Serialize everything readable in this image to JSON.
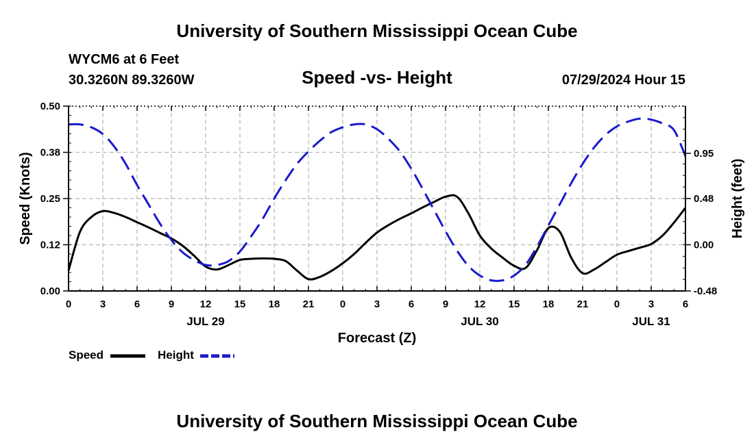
{
  "header": {
    "title": "University of Southern Mississippi Ocean Cube",
    "station": "WYCM6 at 6 Feet",
    "coords": "30.3260N  89.3260W",
    "datetime": "07/29/2024 Hour 15",
    "footer_title": "University of Southern Mississippi Ocean Cube"
  },
  "legend": {
    "speed_label": "Speed",
    "height_label": "Height"
  },
  "colors": {
    "speed": "#000000",
    "height": "#1a1acc",
    "grid": "#b8b8b8"
  },
  "chart_data": {
    "type": "line",
    "title": "Speed -vs- Height",
    "xlabel": "Forecast (Z)",
    "ylabel": "Speed (Knots)",
    "ylabel_right": "Height (feet)",
    "xlim": [
      0,
      54
    ],
    "ylim": [
      0,
      0.5
    ],
    "ylim_right": [
      -0.48,
      1.44
    ],
    "x_tick_values": [
      0,
      3,
      6,
      9,
      12,
      15,
      18,
      21,
      24,
      27,
      30,
      33,
      36,
      39,
      42,
      45,
      48,
      51,
      54
    ],
    "x_tick_labels": [
      "0",
      "3",
      "6",
      "9",
      "12",
      "15",
      "18",
      "21",
      "0",
      "3",
      "6",
      "9",
      "12",
      "15",
      "18",
      "21",
      "0",
      "3",
      "6"
    ],
    "date_labels": [
      {
        "x": 12,
        "label": "JUL 29"
      },
      {
        "x": 36,
        "label": "JUL 30"
      },
      {
        "x": 51,
        "label": "JUL 31"
      }
    ],
    "y_ticks": [
      "0.00",
      "0.12",
      "0.25",
      "0.38",
      "0.50"
    ],
    "y_tick_values": [
      0,
      0.125,
      0.25,
      0.375,
      0.5
    ],
    "y_ticks_right": [
      "-0.48",
      "0.00",
      "0.48",
      "0.95"
    ],
    "y_tick_values_right": [
      -0.48,
      0,
      0.48,
      0.95
    ],
    "series": [
      {
        "name": "Speed",
        "axis": "left",
        "style": "solid",
        "x": [
          0,
          1,
          2,
          3,
          4,
          5,
          6,
          7,
          8,
          9,
          10,
          11,
          12,
          13,
          14,
          15,
          16,
          17,
          18,
          19,
          20,
          21,
          22,
          23,
          24,
          25,
          26,
          27,
          28,
          29,
          30,
          31,
          32,
          33,
          34,
          35,
          36,
          37,
          38,
          39,
          40,
          41,
          42,
          43,
          44,
          45,
          46,
          47,
          48,
          49,
          50,
          51,
          52,
          53,
          54
        ],
        "values": [
          0.055,
          0.16,
          0.2,
          0.216,
          0.211,
          0.2,
          0.186,
          0.172,
          0.157,
          0.142,
          0.122,
          0.095,
          0.066,
          0.058,
          0.07,
          0.084,
          0.087,
          0.088,
          0.087,
          0.081,
          0.055,
          0.032,
          0.038,
          0.054,
          0.075,
          0.1,
          0.13,
          0.158,
          0.178,
          0.195,
          0.21,
          0.226,
          0.241,
          0.255,
          0.255,
          0.21,
          0.15,
          0.115,
          0.09,
          0.068,
          0.062,
          0.11,
          0.17,
          0.16,
          0.09,
          0.048,
          0.058,
          0.078,
          0.098,
          0.108,
          0.117,
          0.127,
          0.15,
          0.185,
          0.225
        ]
      },
      {
        "name": "Height",
        "axis": "right",
        "style": "dashed",
        "x": [
          0,
          1,
          2,
          3,
          4,
          5,
          6,
          7,
          8,
          9,
          10,
          11,
          12,
          13,
          14,
          15,
          16,
          17,
          18,
          19,
          20,
          21,
          22,
          23,
          24,
          25,
          26,
          27,
          28,
          29,
          30,
          31,
          32,
          33,
          34,
          35,
          36,
          37,
          38,
          39,
          40,
          41,
          42,
          43,
          44,
          45,
          46,
          47,
          48,
          49,
          50,
          51,
          52,
          53,
          54
        ],
        "values": [
          1.25,
          1.25,
          1.22,
          1.15,
          1.02,
          0.84,
          0.62,
          0.42,
          0.22,
          0.05,
          -0.08,
          -0.16,
          -0.21,
          -0.21,
          -0.17,
          -0.07,
          0.09,
          0.27,
          0.48,
          0.67,
          0.84,
          0.97,
          1.08,
          1.17,
          1.22,
          1.25,
          1.25,
          1.2,
          1.1,
          0.97,
          0.79,
          0.58,
          0.36,
          0.14,
          -0.06,
          -0.22,
          -0.32,
          -0.37,
          -0.37,
          -0.32,
          -0.21,
          -0.02,
          0.2,
          0.42,
          0.64,
          0.84,
          1.01,
          1.14,
          1.23,
          1.28,
          1.31,
          1.3,
          1.26,
          1.19,
          0.92
        ]
      }
    ]
  }
}
